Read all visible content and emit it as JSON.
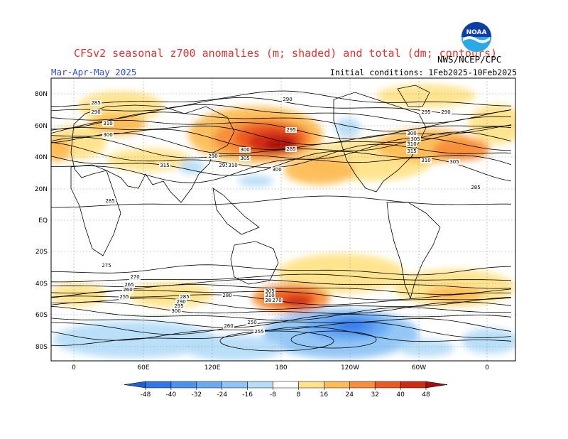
{
  "header": {
    "title": "CFSv2 seasonal z700 anomalies (m; shaded) and total (dm; contours)",
    "period": "Mar-Apr-May 2025",
    "initial_conditions": "Initial conditions: 1Feb2025-10Feb2025",
    "agency": "NWS/NCEP/CPC",
    "logo_text": "NOAA"
  },
  "map": {
    "lat_labels": [
      "80N",
      "60N",
      "40N",
      "20N",
      "EQ",
      "20S",
      "40S",
      "60S",
      "80S"
    ],
    "lon_labels": [
      "0",
      "60E",
      "120E",
      "180",
      "120W",
      "60W",
      "0"
    ],
    "contour_labels": [
      "285",
      "290",
      "300",
      "310",
      "315",
      "285",
      "290",
      "295",
      "300",
      "305",
      "310",
      "285",
      "290",
      "295",
      "300",
      "305",
      "310",
      "315",
      "310",
      "305",
      "300",
      "295",
      "290",
      "285",
      "280",
      "275",
      "270",
      "265",
      "260",
      "255",
      "285",
      "290",
      "295",
      "300",
      "305",
      "310",
      "280",
      "270",
      "260",
      "250",
      "255"
    ]
  },
  "colorbar": {
    "labels": [
      "-48",
      "-40",
      "-32",
      "-24",
      "-16",
      "-8",
      "8",
      "16",
      "24",
      "32",
      "40",
      "48"
    ],
    "colors": [
      "#1e5fd8",
      "#2f78ea",
      "#4a92f0",
      "#6aaaf3",
      "#8ec4f6",
      "#b6ddf8",
      "#ffffff",
      "#ffe38a",
      "#fdbd55",
      "#f88e3a",
      "#ec5a22",
      "#cf2a12",
      "#a80d0b"
    ]
  }
}
